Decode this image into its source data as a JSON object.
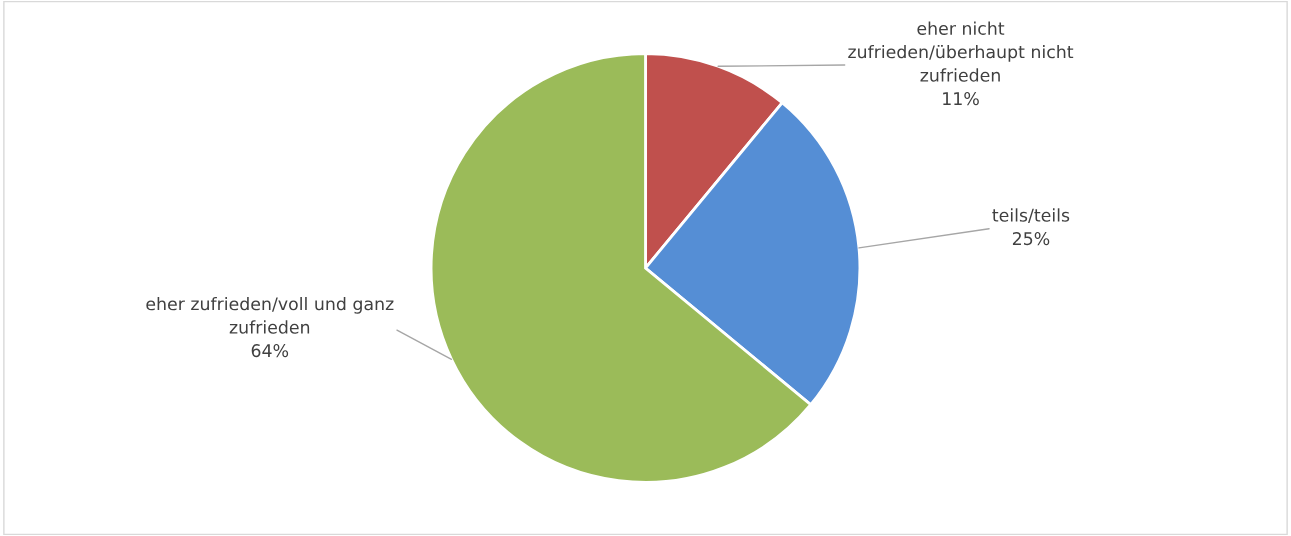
{
  "chart_data": {
    "type": "pie",
    "categories": [
      "eher nicht\nzufrieden/überhaupt nicht\nzufrieden",
      "teils/teils",
      "eher zufrieden/voll und ganz\nzufrieden"
    ],
    "values": [
      11,
      25,
      64
    ],
    "colors": [
      "#c0504d",
      "#558ed5",
      "#9bbb59"
    ],
    "value_labels": [
      "11%",
      "25%",
      "64%"
    ],
    "legend": false
  }
}
